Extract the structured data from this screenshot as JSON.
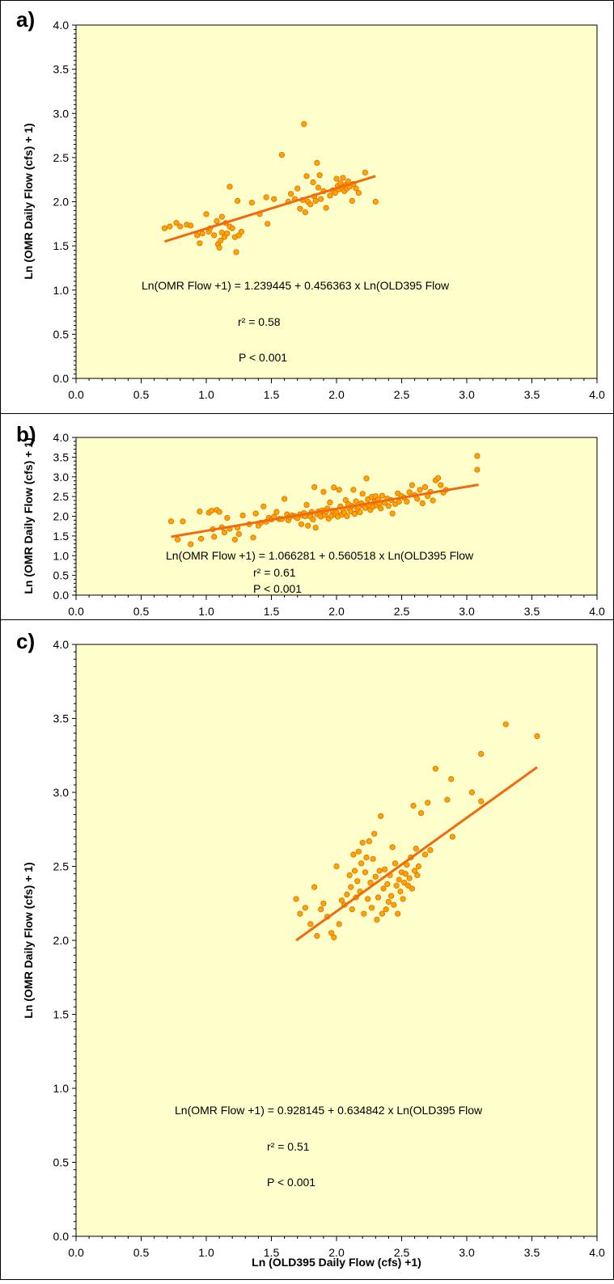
{
  "colors": {
    "plot_background": "#ffffcc",
    "marker_fill": "#ffa500",
    "marker_edge": "#e06a00",
    "trend_line": "#f06a10",
    "frame": "#000000"
  },
  "chart_data": [
    {
      "type": "scatter",
      "panel_label": "a)",
      "xlabel": "",
      "ylabel": "Ln (OMR Daily Flow (cfs) + 1)",
      "xlim": [
        0,
        4
      ],
      "ylim": [
        0,
        4
      ],
      "xticks": [
        "0.0",
        "0.5",
        "1.0",
        "1.5",
        "2.0",
        "2.5",
        "3.0",
        "3.5",
        "4.0"
      ],
      "yticks": [
        "0.0",
        "0.5",
        "1.0",
        "1.5",
        "2.0",
        "2.5",
        "3.0",
        "3.5",
        "4.0"
      ],
      "grid": false,
      "annotations": [
        "Ln(OMR Flow +1) = 1.239445 + 0.456363 x Ln(OLD395 Flow",
        "r² = 0.58",
        "P < 0.001"
      ],
      "trendline": {
        "x": [
          0.68,
          2.3
        ],
        "y": [
          1.55,
          2.29
        ]
      },
      "points": [
        [
          0.68,
          1.7
        ],
        [
          0.72,
          1.72
        ],
        [
          0.77,
          1.76
        ],
        [
          0.8,
          1.72
        ],
        [
          0.85,
          1.74
        ],
        [
          0.88,
          1.73
        ],
        [
          0.93,
          1.62
        ],
        [
          0.95,
          1.53
        ],
        [
          0.97,
          1.64
        ],
        [
          1.0,
          1.86
        ],
        [
          1.02,
          1.66
        ],
        [
          1.03,
          1.7
        ],
        [
          1.06,
          1.62
        ],
        [
          1.08,
          1.78
        ],
        [
          1.09,
          1.52
        ],
        [
          1.1,
          1.48
        ],
        [
          1.11,
          1.56
        ],
        [
          1.12,
          1.83
        ],
        [
          1.12,
          1.65
        ],
        [
          1.14,
          1.6
        ],
        [
          1.15,
          1.76
        ],
        [
          1.16,
          1.64
        ],
        [
          1.18,
          2.17
        ],
        [
          1.18,
          1.72
        ],
        [
          1.2,
          1.7
        ],
        [
          1.22,
          1.6
        ],
        [
          1.23,
          1.43
        ],
        [
          1.24,
          2.01
        ],
        [
          1.25,
          1.62
        ],
        [
          1.27,
          1.66
        ],
        [
          1.35,
          1.99
        ],
        [
          1.41,
          1.86
        ],
        [
          1.46,
          2.05
        ],
        [
          1.47,
          1.75
        ],
        [
          1.52,
          2.03
        ],
        [
          1.58,
          2.53
        ],
        [
          1.63,
          2.0
        ],
        [
          1.65,
          2.09
        ],
        [
          1.68,
          2.03
        ],
        [
          1.7,
          2.15
        ],
        [
          1.72,
          1.92
        ],
        [
          1.74,
          2.02
        ],
        [
          1.75,
          2.88
        ],
        [
          1.76,
          1.88
        ],
        [
          1.77,
          2.29
        ],
        [
          1.78,
          2.0
        ],
        [
          1.8,
          1.97
        ],
        [
          1.82,
          2.22
        ],
        [
          1.83,
          2.06
        ],
        [
          1.84,
          2.01
        ],
        [
          1.85,
          2.44
        ],
        [
          1.86,
          2.16
        ],
        [
          1.87,
          2.3
        ],
        [
          1.88,
          2.03
        ],
        [
          1.9,
          2.12
        ],
        [
          1.92,
          1.93
        ],
        [
          1.95,
          2.07
        ],
        [
          1.97,
          2.13
        ],
        [
          1.99,
          2.1
        ],
        [
          2.0,
          2.26
        ],
        [
          2.01,
          2.18
        ],
        [
          2.02,
          2.14
        ],
        [
          2.03,
          2.21
        ],
        [
          2.04,
          2.16
        ],
        [
          2.05,
          2.27
        ],
        [
          2.06,
          2.12
        ],
        [
          2.07,
          2.19
        ],
        [
          2.08,
          2.15
        ],
        [
          2.09,
          2.23
        ],
        [
          2.1,
          2.17
        ],
        [
          2.12,
          2.01
        ],
        [
          2.13,
          2.2
        ],
        [
          2.15,
          2.15
        ],
        [
          2.17,
          2.1
        ],
        [
          2.22,
          2.33
        ],
        [
          2.3,
          2.0
        ]
      ]
    },
    {
      "type": "scatter",
      "panel_label": "b)",
      "xlabel": "",
      "ylabel": "Ln (OMR Daily Flow (cfs) + 1)",
      "xlim": [
        0,
        4
      ],
      "ylim": [
        0,
        4
      ],
      "xticks": [
        "0.0",
        "0.5",
        "1.0",
        "1.5",
        "2.0",
        "2.5",
        "3.0",
        "3.5",
        "4.0"
      ],
      "yticks": [
        "0.0",
        "0.5",
        "1.0",
        "1.5",
        "2.0",
        "2.5",
        "3.0",
        "3.5",
        "4.0"
      ],
      "grid": false,
      "annotations": [
        "Ln(OMR Flow +1) = 1.066281 + 0.560518 x Ln(OLD395 Flow",
        "r² = 0.61",
        "P < 0.001"
      ],
      "trendline": {
        "x": [
          0.73,
          3.09
        ],
        "y": [
          1.48,
          2.8
        ]
      },
      "points": [
        [
          0.73,
          1.87
        ],
        [
          0.78,
          1.41
        ],
        [
          0.82,
          1.87
        ],
        [
          0.88,
          1.29
        ],
        [
          0.95,
          2.12
        ],
        [
          0.96,
          1.43
        ],
        [
          1.02,
          2.09
        ],
        [
          1.04,
          2.14
        ],
        [
          1.05,
          1.67
        ],
        [
          1.06,
          1.48
        ],
        [
          1.08,
          2.16
        ],
        [
          1.1,
          2.11
        ],
        [
          1.12,
          1.72
        ],
        [
          1.14,
          1.59
        ],
        [
          1.16,
          1.96
        ],
        [
          1.18,
          1.68
        ],
        [
          1.22,
          1.41
        ],
        [
          1.24,
          1.71
        ],
        [
          1.25,
          1.55
        ],
        [
          1.28,
          2.02
        ],
        [
          1.33,
          1.8
        ],
        [
          1.36,
          1.46
        ],
        [
          1.38,
          2.07
        ],
        [
          1.4,
          1.76
        ],
        [
          1.42,
          1.84
        ],
        [
          1.44,
          2.25
        ],
        [
          1.46,
          1.86
        ],
        [
          1.48,
          1.96
        ],
        [
          1.5,
          1.92
        ],
        [
          1.52,
          1.99
        ],
        [
          1.54,
          2.11
        ],
        [
          1.56,
          1.93
        ],
        [
          1.58,
          1.93
        ],
        [
          1.6,
          2.44
        ],
        [
          1.62,
          2.05
        ],
        [
          1.63,
          1.9
        ],
        [
          1.64,
          1.98
        ],
        [
          1.66,
          2.02
        ],
        [
          1.68,
          2.0
        ],
        [
          1.7,
          1.95
        ],
        [
          1.72,
          2.05
        ],
        [
          1.73,
          1.8
        ],
        [
          1.74,
          2.02
        ],
        [
          1.75,
          2.08
        ],
        [
          1.76,
          2.0
        ],
        [
          1.77,
          2.29
        ],
        [
          1.78,
          1.76
        ],
        [
          1.79,
          2.04
        ],
        [
          1.8,
          1.99
        ],
        [
          1.81,
          2.11
        ],
        [
          1.82,
          1.92
        ],
        [
          1.83,
          2.74
        ],
        [
          1.84,
          1.71
        ],
        [
          1.85,
          2.05
        ],
        [
          1.86,
          2.12
        ],
        [
          1.87,
          2.09
        ],
        [
          1.88,
          1.99
        ],
        [
          1.89,
          2.15
        ],
        [
          1.9,
          2.62
        ],
        [
          1.91,
          2.03
        ],
        [
          1.92,
          2.12
        ],
        [
          1.93,
          2.2
        ],
        [
          1.94,
          1.94
        ],
        [
          1.95,
          2.35
        ],
        [
          1.96,
          2.01
        ],
        [
          1.97,
          2.14
        ],
        [
          1.98,
          2.73
        ],
        [
          1.99,
          2.05
        ],
        [
          2.0,
          2.1
        ],
        [
          2.01,
          1.99
        ],
        [
          2.02,
          2.67
        ],
        [
          2.03,
          2.25
        ],
        [
          2.04,
          2.04
        ],
        [
          2.05,
          2.17
        ],
        [
          2.06,
          2.09
        ],
        [
          2.07,
          2.41
        ],
        [
          2.08,
          2.0
        ],
        [
          2.09,
          2.31
        ],
        [
          2.1,
          2.19
        ],
        [
          2.11,
          2.12
        ],
        [
          2.12,
          2.26
        ],
        [
          2.13,
          2.67
        ],
        [
          2.14,
          2.06
        ],
        [
          2.15,
          2.38
        ],
        [
          2.16,
          2.18
        ],
        [
          2.17,
          2.24
        ],
        [
          2.18,
          2.1
        ],
        [
          2.19,
          2.33
        ],
        [
          2.2,
          2.57
        ],
        [
          2.21,
          2.27
        ],
        [
          2.22,
          2.21
        ],
        [
          2.23,
          2.96
        ],
        [
          2.24,
          2.43
        ],
        [
          2.25,
          2.29
        ],
        [
          2.26,
          2.16
        ],
        [
          2.27,
          2.49
        ],
        [
          2.28,
          2.24
        ],
        [
          2.29,
          2.37
        ],
        [
          2.3,
          2.51
        ],
        [
          2.31,
          2.28
        ],
        [
          2.32,
          2.42
        ],
        [
          2.33,
          2.33
        ],
        [
          2.34,
          2.2
        ],
        [
          2.35,
          2.52
        ],
        [
          2.37,
          2.34
        ],
        [
          2.39,
          2.45
        ],
        [
          2.4,
          2.26
        ],
        [
          2.42,
          2.41
        ],
        [
          2.43,
          2.07
        ],
        [
          2.45,
          2.31
        ],
        [
          2.47,
          2.58
        ],
        [
          2.48,
          2.37
        ],
        [
          2.5,
          2.51
        ],
        [
          2.52,
          2.47
        ],
        [
          2.54,
          2.37
        ],
        [
          2.56,
          2.61
        ],
        [
          2.58,
          2.79
        ],
        [
          2.6,
          2.54
        ],
        [
          2.62,
          2.44
        ],
        [
          2.64,
          2.67
        ],
        [
          2.66,
          2.33
        ],
        [
          2.68,
          2.74
        ],
        [
          2.7,
          2.51
        ],
        [
          2.72,
          2.62
        ],
        [
          2.74,
          2.4
        ],
        [
          2.76,
          2.91
        ],
        [
          2.78,
          2.97
        ],
        [
          2.8,
          2.79
        ],
        [
          2.82,
          2.6
        ],
        [
          2.84,
          2.67
        ],
        [
          3.08,
          3.53
        ],
        [
          3.08,
          3.18
        ]
      ]
    },
    {
      "type": "scatter",
      "panel_label": "c)",
      "xlabel": "Ln (OLD395 Daily Flow (cfs) +1)",
      "ylabel": "Ln (OMR Daily Flow (cfs) + 1)",
      "xlim": [
        0,
        4
      ],
      "ylim": [
        0,
        4
      ],
      "xticks": [
        "0.0",
        "0.5",
        "1.0",
        "1.5",
        "2.0",
        "2.5",
        "3.0",
        "3.5",
        "4.0"
      ],
      "yticks": [
        "0.0",
        "0.5",
        "1.0",
        "1.5",
        "2.0",
        "2.5",
        "3.0",
        "3.5",
        "4.0"
      ],
      "grid": false,
      "annotations": [
        "Ln(OMR Flow +1) = 0.928145 + 0.634842 x Ln(OLD395 Flow",
        "r² = 0.51",
        "P < 0.001"
      ],
      "trendline": {
        "x": [
          1.69,
          3.54
        ],
        "y": [
          2.0,
          3.17
        ]
      },
      "points": [
        [
          1.69,
          2.28
        ],
        [
          1.72,
          2.18
        ],
        [
          1.76,
          2.22
        ],
        [
          1.8,
          2.11
        ],
        [
          1.83,
          2.36
        ],
        [
          1.85,
          2.03
        ],
        [
          1.88,
          2.21
        ],
        [
          1.9,
          2.25
        ],
        [
          1.93,
          2.16
        ],
        [
          1.96,
          2.05
        ],
        [
          1.98,
          2.02
        ],
        [
          2.0,
          2.5
        ],
        [
          2.02,
          2.11
        ],
        [
          2.04,
          2.27
        ],
        [
          2.06,
          2.24
        ],
        [
          2.08,
          2.31
        ],
        [
          2.1,
          2.44
        ],
        [
          2.11,
          2.36
        ],
        [
          2.12,
          2.21
        ],
        [
          2.13,
          2.58
        ],
        [
          2.14,
          2.47
        ],
        [
          2.15,
          2.29
        ],
        [
          2.16,
          2.4
        ],
        [
          2.17,
          2.6
        ],
        [
          2.18,
          2.33
        ],
        [
          2.19,
          2.52
        ],
        [
          2.2,
          2.66
        ],
        [
          2.21,
          2.18
        ],
        [
          2.22,
          2.46
        ],
        [
          2.23,
          2.56
        ],
        [
          2.24,
          2.28
        ],
        [
          2.25,
          2.67
        ],
        [
          2.26,
          2.39
        ],
        [
          2.27,
          2.22
        ],
        [
          2.28,
          2.55
        ],
        [
          2.29,
          2.72
        ],
        [
          2.3,
          2.43
        ],
        [
          2.31,
          2.14
        ],
        [
          2.32,
          2.29
        ],
        [
          2.33,
          2.47
        ],
        [
          2.34,
          2.84
        ],
        [
          2.35,
          2.18
        ],
        [
          2.36,
          2.35
        ],
        [
          2.37,
          2.48
        ],
        [
          2.38,
          2.21
        ],
        [
          2.39,
          2.38
        ],
        [
          2.4,
          2.26
        ],
        [
          2.41,
          2.44
        ],
        [
          2.42,
          2.3
        ],
        [
          2.43,
          2.63
        ],
        [
          2.44,
          2.24
        ],
        [
          2.45,
          2.52
        ],
        [
          2.46,
          2.37
        ],
        [
          2.47,
          2.18
        ],
        [
          2.48,
          2.41
        ],
        [
          2.49,
          2.33
        ],
        [
          2.5,
          2.46
        ],
        [
          2.51,
          2.28
        ],
        [
          2.52,
          2.39
        ],
        [
          2.53,
          2.45
        ],
        [
          2.54,
          2.51
        ],
        [
          2.55,
          2.37
        ],
        [
          2.56,
          2.42
        ],
        [
          2.57,
          2.56
        ],
        [
          2.58,
          2.35
        ],
        [
          2.59,
          2.91
        ],
        [
          2.6,
          2.47
        ],
        [
          2.61,
          2.62
        ],
        [
          2.62,
          2.44
        ],
        [
          2.63,
          2.5
        ],
        [
          2.65,
          2.86
        ],
        [
          2.68,
          2.58
        ],
        [
          2.7,
          2.93
        ],
        [
          2.72,
          2.61
        ],
        [
          2.76,
          3.16
        ],
        [
          2.85,
          2.95
        ],
        [
          2.88,
          3.09
        ],
        [
          2.89,
          2.7
        ],
        [
          3.04,
          3.0
        ],
        [
          3.11,
          3.26
        ],
        [
          3.11,
          2.94
        ],
        [
          3.3,
          3.46
        ],
        [
          3.54,
          3.38
        ]
      ]
    }
  ]
}
